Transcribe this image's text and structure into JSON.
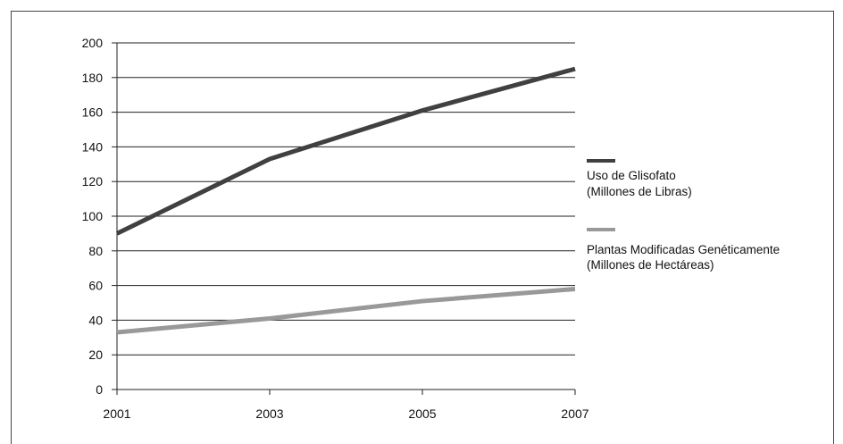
{
  "chart_data": {
    "type": "line",
    "x": [
      2001,
      2003,
      2005,
      2007
    ],
    "xlim": [
      2001,
      2007
    ],
    "ylim": [
      0,
      200
    ],
    "yticks": [
      0,
      20,
      40,
      60,
      80,
      100,
      120,
      140,
      160,
      180,
      200
    ],
    "xticks": [
      2001,
      2003,
      2005,
      2007
    ],
    "grid": "horizontal",
    "legend_position": "right",
    "series": [
      {
        "name_line1": "Uso de Glisofato",
        "name_line2": "(Millones de Libras)",
        "color": "#404040",
        "values": [
          90,
          133,
          161,
          185
        ]
      },
      {
        "name_line1": "Plantas Modificadas Genéticamente",
        "name_line2": "(Millones de Hectáreas)",
        "color": "#999999",
        "values": [
          33,
          41,
          51,
          58
        ]
      }
    ]
  }
}
